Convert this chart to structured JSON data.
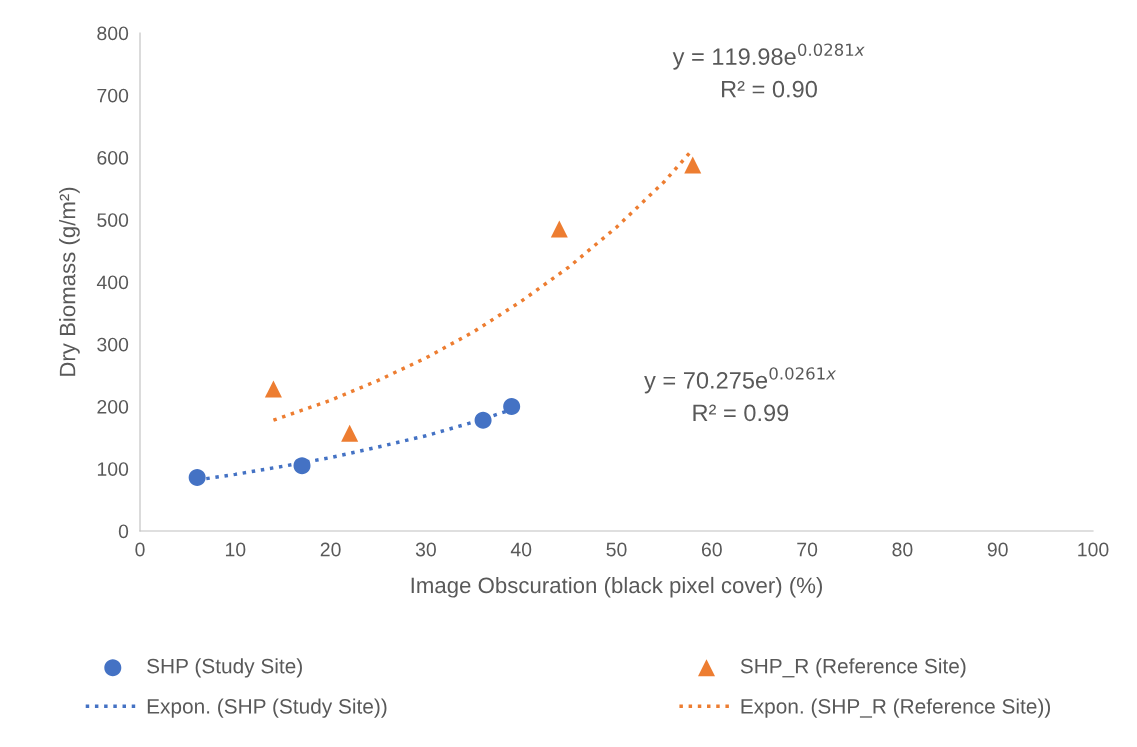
{
  "chart_data": {
    "type": "scatter",
    "xlabel": "Image Obscuration (black pixel cover) (%)",
    "ylabel": "Dry Biomass (g/m²)",
    "xlim": [
      0,
      100
    ],
    "xticks": [
      0,
      10,
      20,
      30,
      40,
      50,
      60,
      70,
      80,
      90,
      100
    ],
    "ylim": [
      0,
      800
    ],
    "yticks": [
      0,
      100,
      200,
      300,
      400,
      500,
      600,
      700,
      800
    ],
    "grid": false,
    "legend": "bottom",
    "series": [
      {
        "name": "SHP (Study Site)",
        "marker": "circle",
        "color": "#4472c4",
        "x": [
          6,
          17,
          36,
          39
        ],
        "values": [
          86,
          105,
          178,
          200
        ]
      },
      {
        "name": "SHP_R (Reference Site)",
        "marker": "triangle",
        "color": "#ed7d31",
        "x": [
          14,
          22,
          44,
          58
        ],
        "values": [
          228,
          157,
          485,
          588
        ]
      },
      {
        "name": "Expon. (SHP (Study Site))",
        "type": "line",
        "line_style": "dotted",
        "marker": "none",
        "color": "#4472c4",
        "x": [
          6,
          10,
          15,
          20,
          25,
          30,
          35,
          39
        ],
        "values": [
          82,
          91,
          104,
          118,
          135,
          153,
          175,
          195
        ]
      },
      {
        "name": "Expon. (SHP_R (Reference Site))",
        "type": "line",
        "line_style": "dotted",
        "marker": "none",
        "color": "#ed7d31",
        "x": [
          14,
          20,
          25,
          30,
          35,
          40,
          45,
          50,
          55,
          58
        ],
        "values": [
          178,
          210,
          242,
          278,
          320,
          369,
          424,
          488,
          561,
          613
        ]
      }
    ],
    "annotations": [
      "y = 119.98e$^{0.0281x}$\nR² = 0.90",
      "y = 70.275e$^{0.0261x}$\nR² = 0.99"
    ]
  }
}
